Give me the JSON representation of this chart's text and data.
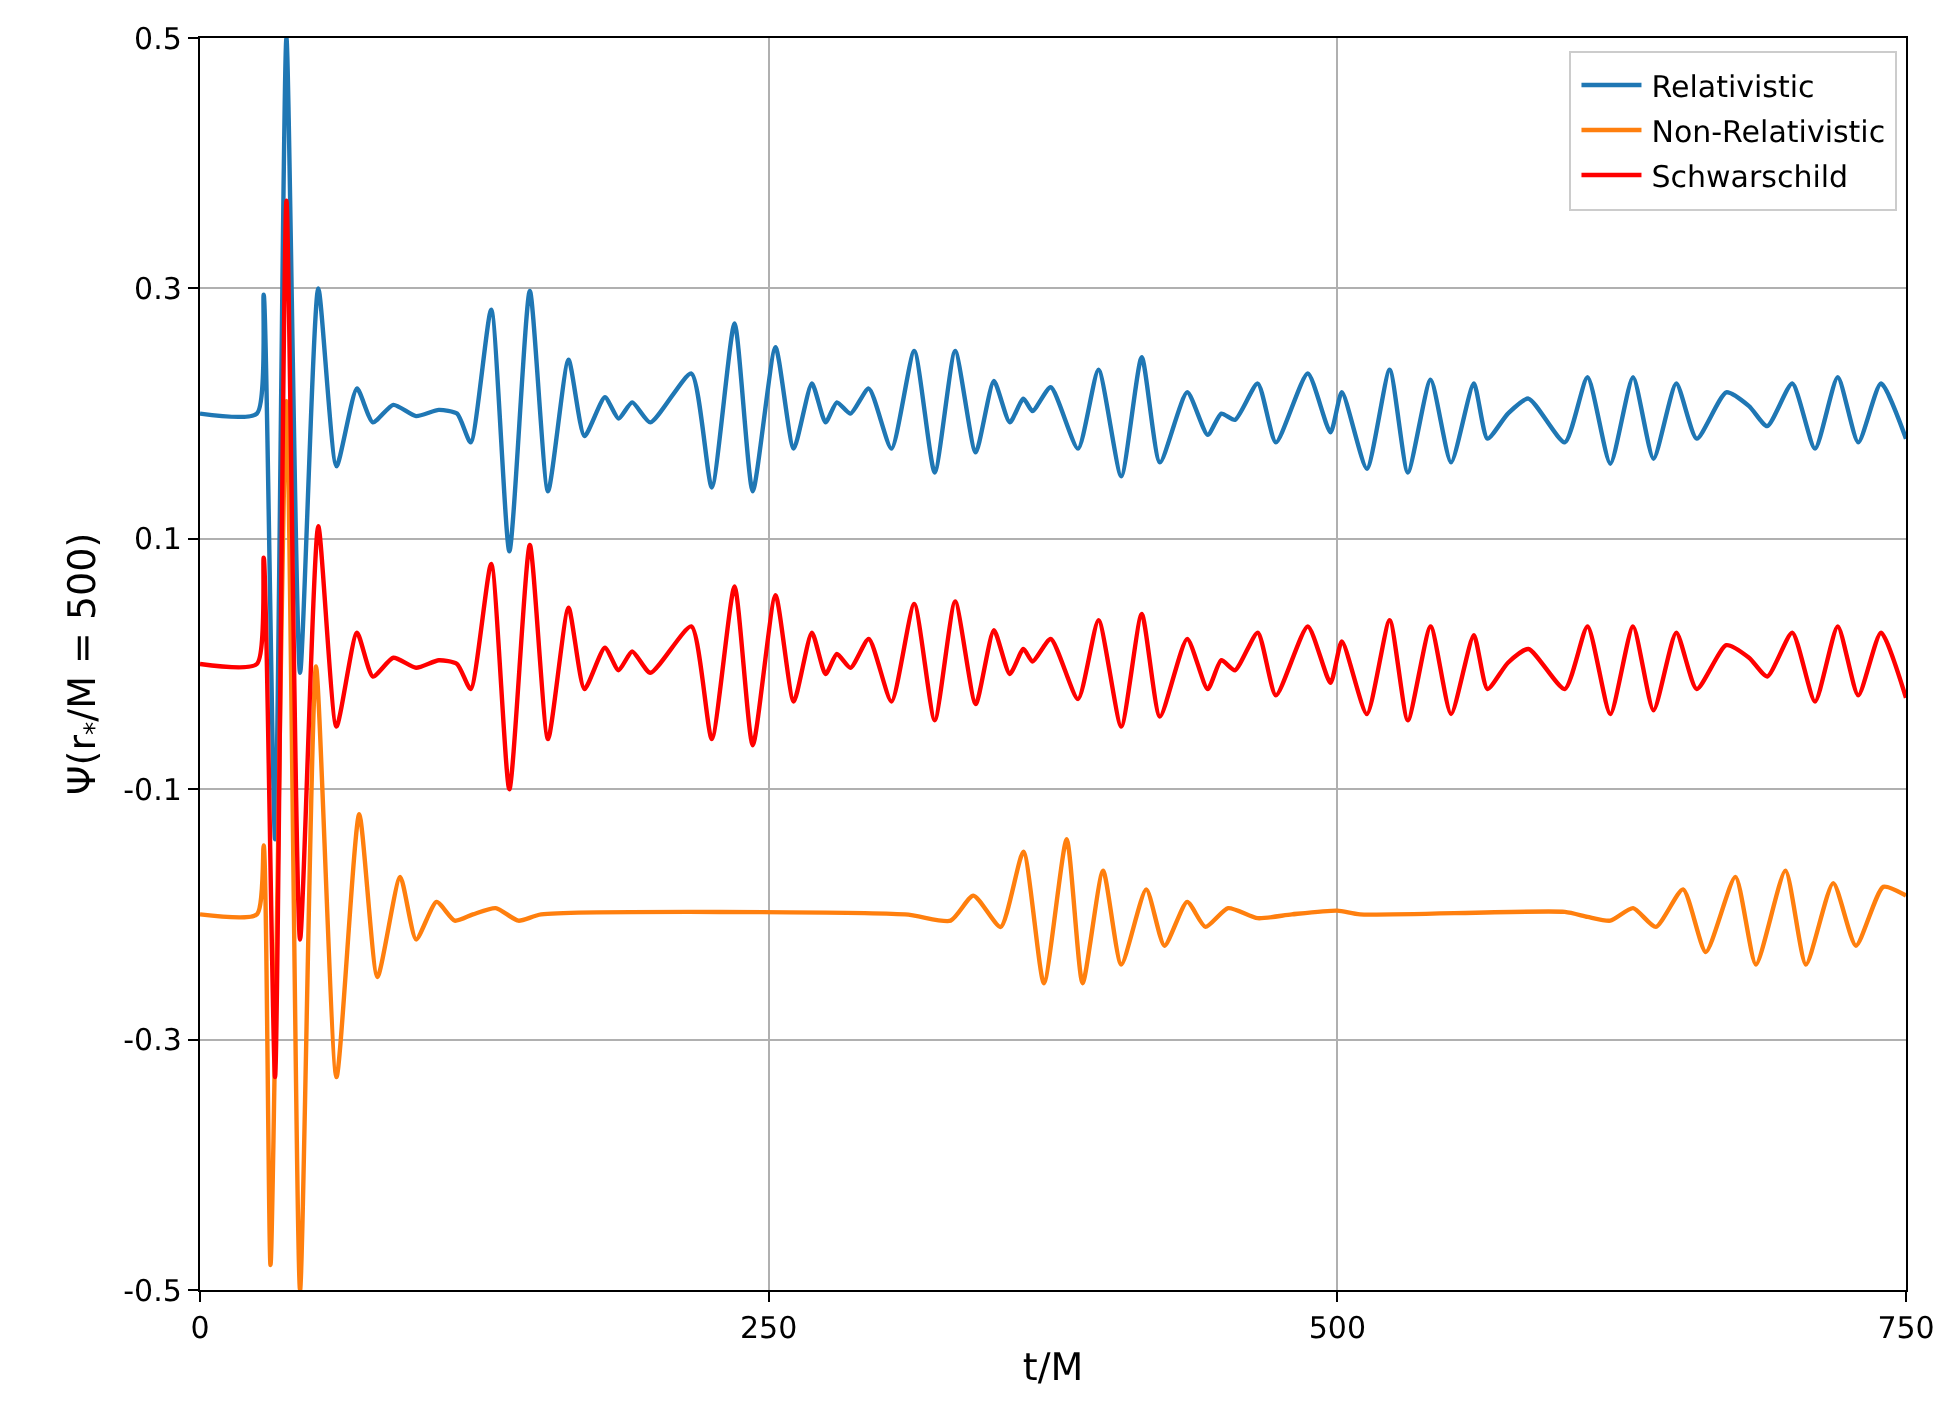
{
  "chart_data": {
    "type": "line",
    "xlabel": "t/M",
    "ylabel": "Ψ(r$_{*}$/M = 500)",
    "xlim": [
      0,
      750
    ],
    "xticks": [
      0,
      250,
      500,
      750
    ],
    "ylim": [
      -0.5,
      0.5
    ],
    "yticks": [
      -0.5,
      -0.3,
      -0.1,
      0.1,
      0.3,
      0.5
    ],
    "grid": true,
    "legend": "top right",
    "line_style": "solid",
    "marker": "none",
    "series": [
      {
        "name": "Relativistic",
        "color": "#1f77b4",
        "x": [
          0,
          25,
          28,
          33,
          38,
          44,
          52,
          60,
          69,
          76,
          85,
          95,
          105,
          113,
          119,
          128,
          136,
          145,
          153,
          162,
          169,
          178,
          184,
          190,
          198,
          216,
          225,
          235,
          243,
          253,
          261,
          269,
          275,
          280,
          286,
          294,
          304,
          314,
          323,
          332,
          341,
          349,
          356,
          362,
          366,
          374,
          386,
          395,
          405,
          414,
          422,
          434,
          443,
          449,
          455,
          465,
          473,
          487,
          497,
          502,
          513,
          523,
          531,
          541,
          550,
          560,
          566,
          575,
          584,
          600,
          610,
          620,
          630,
          639,
          649,
          658,
          671,
          681,
          689,
          700,
          710,
          720,
          729,
          739,
          750
        ],
        "values": [
          0.2,
          0.2,
          0.295,
          -0.14,
          0.5,
          -0.007,
          0.3,
          0.158,
          0.22,
          0.193,
          0.207,
          0.198,
          0.203,
          0.2,
          0.177,
          0.283,
          0.09,
          0.298,
          0.138,
          0.243,
          0.182,
          0.213,
          0.196,
          0.209,
          0.193,
          0.232,
          0.141,
          0.272,
          0.138,
          0.253,
          0.172,
          0.224,
          0.193,
          0.209,
          0.2,
          0.22,
          0.172,
          0.25,
          0.153,
          0.25,
          0.169,
          0.226,
          0.193,
          0.212,
          0.202,
          0.221,
          0.172,
          0.235,
          0.15,
          0.245,
          0.161,
          0.217,
          0.183,
          0.2,
          0.195,
          0.224,
          0.177,
          0.232,
          0.185,
          0.217,
          0.156,
          0.235,
          0.153,
          0.227,
          0.161,
          0.224,
          0.18,
          0.2,
          0.212,
          0.177,
          0.229,
          0.16,
          0.229,
          0.164,
          0.224,
          0.18,
          0.217,
          0.206,
          0.19,
          0.224,
          0.172,
          0.229,
          0.177,
          0.224,
          0.18
        ]
      },
      {
        "name": "Non-Relativistic",
        "color": "#ff7f0e",
        "x": [
          0,
          25,
          28,
          31,
          38,
          44,
          51,
          60,
          70,
          78,
          88,
          95,
          104,
          112,
          120,
          130,
          140,
          150,
          310,
          330,
          340,
          352,
          362,
          371,
          381,
          388,
          397,
          405,
          416,
          424,
          434,
          442,
          452,
          465,
          480,
          500,
          510,
          600,
          610,
          620,
          630,
          640,
          652,
          662,
          675,
          684,
          697,
          706,
          718,
          728,
          740,
          750
        ],
        "values": [
          -0.2,
          -0.2,
          -0.145,
          -0.48,
          0.21,
          -0.5,
          -0.002,
          -0.33,
          -0.12,
          -0.25,
          -0.17,
          -0.22,
          -0.19,
          -0.205,
          -0.2,
          -0.195,
          -0.205,
          -0.2,
          -0.2,
          -0.205,
          -0.185,
          -0.21,
          -0.15,
          -0.255,
          -0.14,
          -0.255,
          -0.165,
          -0.24,
          -0.18,
          -0.225,
          -0.19,
          -0.21,
          -0.195,
          -0.203,
          -0.2,
          -0.197,
          -0.2,
          -0.198,
          -0.202,
          -0.205,
          -0.195,
          -0.21,
          -0.18,
          -0.23,
          -0.17,
          -0.24,
          -0.165,
          -0.24,
          -0.175,
          -0.225,
          -0.178,
          -0.185
        ]
      },
      {
        "name": "Schwarschild",
        "color": "#ff0000",
        "x": [
          0,
          25,
          28,
          33,
          38,
          44,
          52,
          60,
          69,
          76,
          85,
          95,
          105,
          113,
          119,
          128,
          136,
          145,
          153,
          162,
          169,
          178,
          184,
          190,
          198,
          216,
          225,
          235,
          243,
          253,
          261,
          269,
          275,
          280,
          286,
          294,
          304,
          314,
          323,
          332,
          341,
          349,
          356,
          362,
          366,
          374,
          386,
          395,
          405,
          414,
          422,
          434,
          443,
          449,
          455,
          465,
          473,
          487,
          497,
          502,
          513,
          523,
          531,
          541,
          550,
          560,
          566,
          575,
          584,
          600,
          610,
          620,
          630,
          639,
          649,
          658,
          671,
          681,
          689,
          700,
          710,
          720,
          729,
          739,
          750
        ],
        "values": [
          0,
          0,
          0.085,
          -0.33,
          0.37,
          -0.22,
          0.11,
          -0.05,
          0.025,
          -0.01,
          0.005,
          -0.003,
          0.003,
          0,
          -0.02,
          0.08,
          -0.1,
          0.095,
          -0.06,
          0.045,
          -0.02,
          0.013,
          -0.005,
          0.01,
          -0.007,
          0.03,
          -0.06,
          0.062,
          -0.065,
          0.055,
          -0.03,
          0.025,
          -0.008,
          0.008,
          -0.003,
          0.02,
          -0.03,
          0.048,
          -0.045,
          0.05,
          -0.032,
          0.027,
          -0.008,
          0.012,
          0.002,
          0.02,
          -0.028,
          0.035,
          -0.05,
          0.04,
          -0.042,
          0.02,
          -0.02,
          0.003,
          -0.005,
          0.025,
          -0.025,
          0.03,
          -0.015,
          0.018,
          -0.04,
          0.035,
          -0.045,
          0.03,
          -0.04,
          0.023,
          -0.02,
          0.001,
          0.012,
          -0.02,
          0.03,
          -0.04,
          0.03,
          -0.037,
          0.025,
          -0.02,
          0.015,
          0.005,
          -0.01,
          0.025,
          -0.03,
          0.03,
          -0.025,
          0.025,
          -0.027
        ]
      }
    ]
  }
}
